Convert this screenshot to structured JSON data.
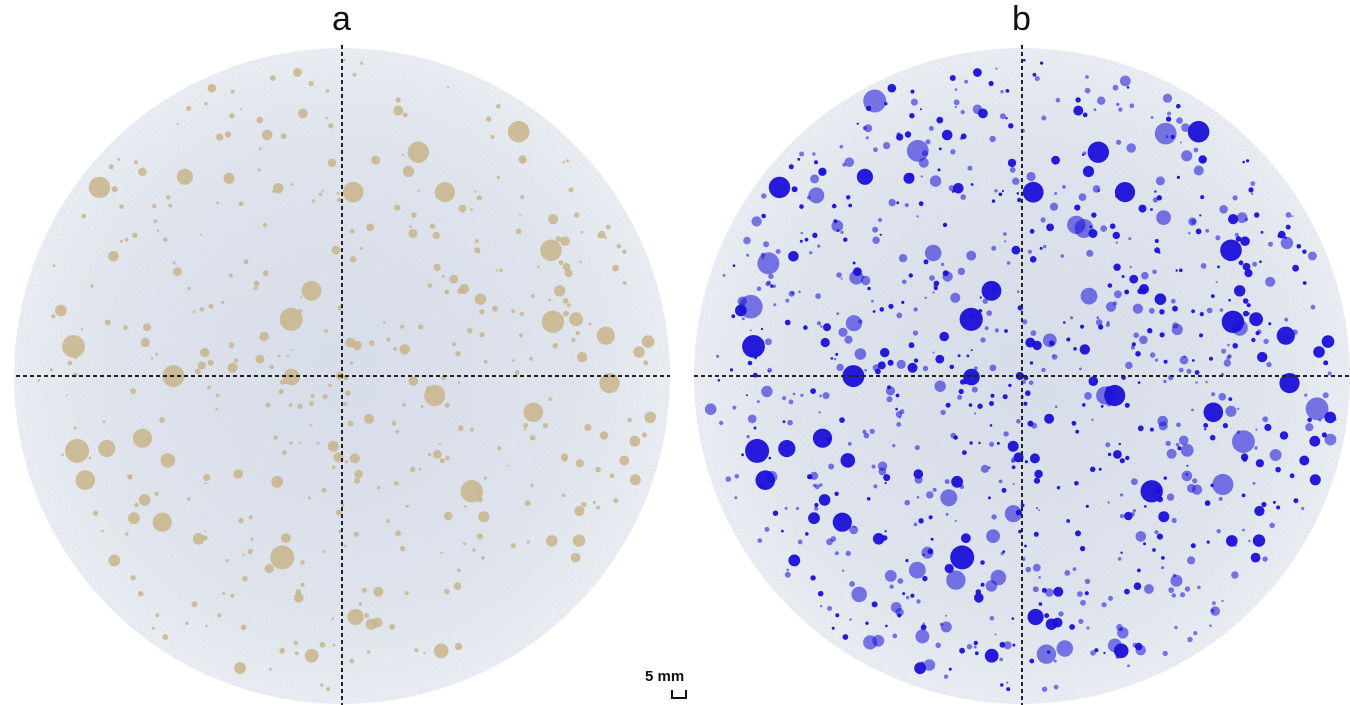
{
  "panels": [
    {
      "label": "a",
      "spot_color": "#c9b48a"
    },
    {
      "label": "b",
      "spot_color": "#1a10d8"
    }
  ],
  "scale_bar": {
    "label": "5 mm"
  }
}
